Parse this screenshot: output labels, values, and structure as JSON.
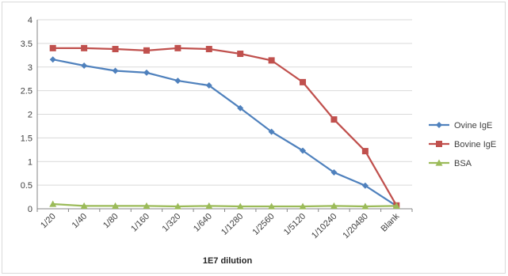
{
  "chart_data": {
    "type": "line",
    "xlabel": "1E7 dilution",
    "ylabel": "",
    "ylim": [
      0,
      4
    ],
    "yticks": [
      "0",
      "0.5",
      "1",
      "1.5",
      "2",
      "2.5",
      "3",
      "3.5",
      "4"
    ],
    "grid": "horizontal",
    "legend_position": "right",
    "categories": [
      "1/20",
      "1/40",
      "1/80",
      "1/160",
      "1/320",
      "1/640",
      "1/1280",
      "1/2560",
      "1/5120",
      "1/10240",
      "1/20480",
      "Blank"
    ],
    "series": [
      {
        "name": "Ovine IgE",
        "color": "#4f81bd",
        "marker": "diamond",
        "values": [
          3.16,
          3.03,
          2.92,
          2.88,
          2.71,
          2.61,
          2.13,
          1.63,
          1.23,
          0.77,
          0.49,
          0.06
        ]
      },
      {
        "name": "Bovine IgE",
        "color": "#c0504d",
        "marker": "square",
        "values": [
          3.4,
          3.4,
          3.38,
          3.35,
          3.4,
          3.38,
          3.28,
          3.14,
          2.68,
          1.89,
          1.22,
          0.07
        ]
      },
      {
        "name": "BSA",
        "color": "#9bbb59",
        "marker": "triangle",
        "values": [
          0.1,
          0.06,
          0.06,
          0.06,
          0.05,
          0.06,
          0.05,
          0.05,
          0.05,
          0.06,
          0.05,
          0.06
        ]
      }
    ]
  }
}
